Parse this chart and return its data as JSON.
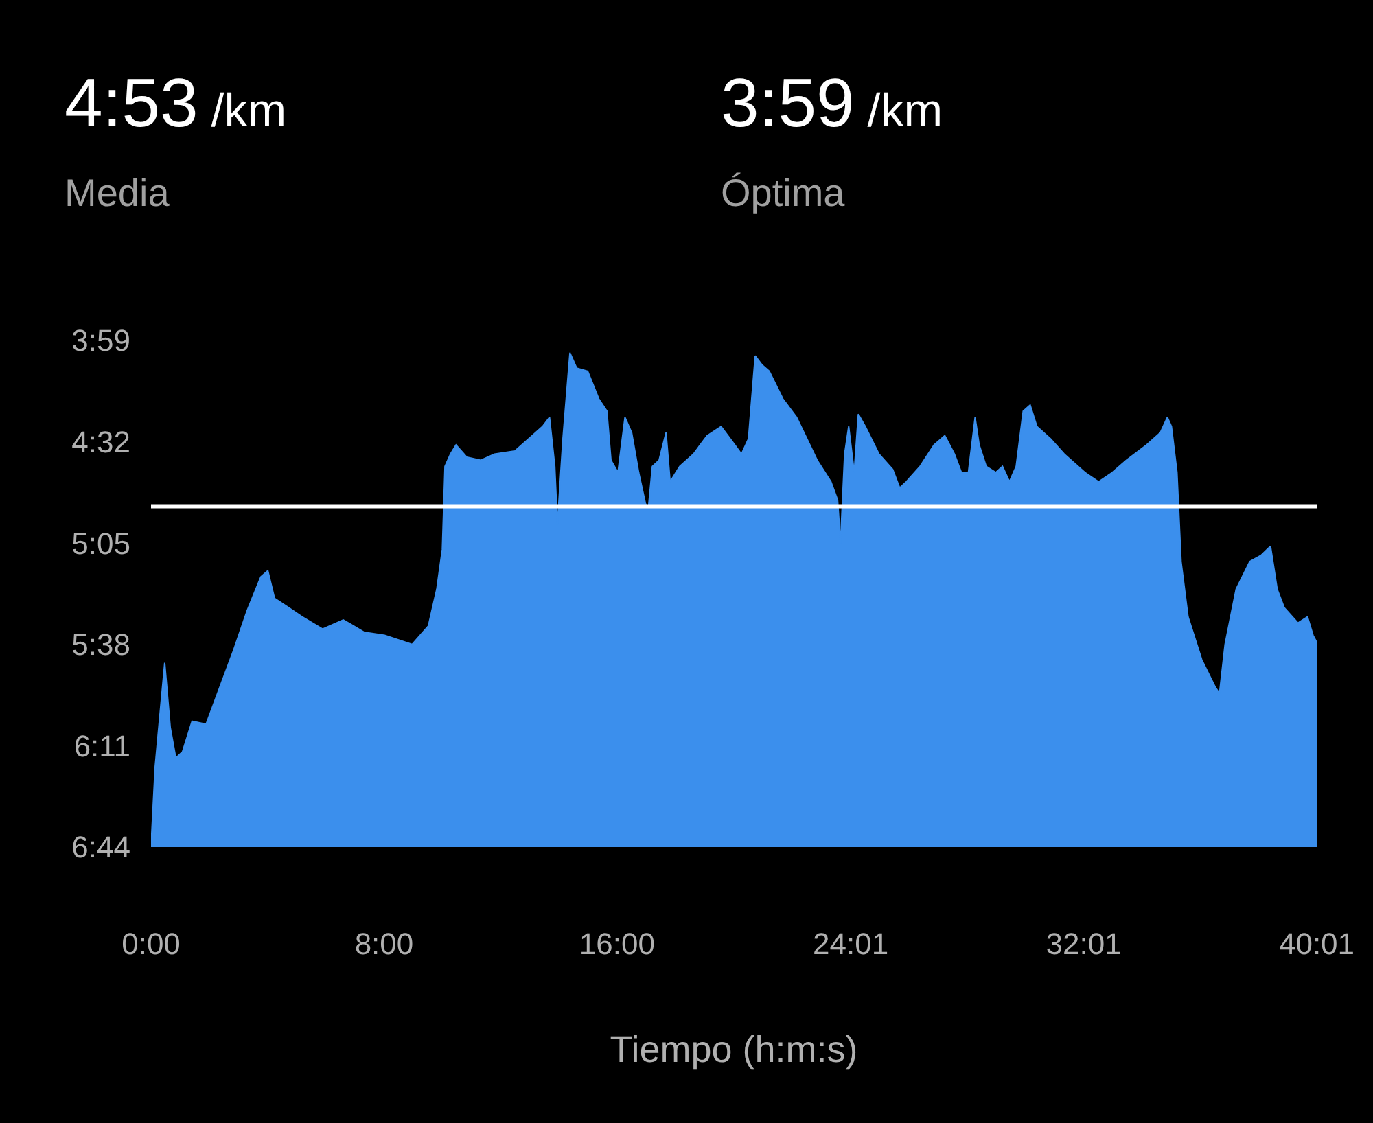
{
  "chart_data": {
    "type": "area",
    "annotations": [
      "4:53 /km",
      "Media",
      "3:59 /km",
      "Óptima"
    ],
    "xlabel": "Tiempo (h:m:s)",
    "x": [
      0,
      0.14,
      0.47,
      0.66,
      0.85,
      1.08,
      1.41,
      1.89,
      2.36,
      2.83,
      3.3,
      3.77,
      4.01,
      4.24,
      4.72,
      5.19,
      5.89,
      6.6,
      7.31,
      8.02,
      8.96,
      9.52,
      9.81,
      10.0,
      10.09,
      10.28,
      10.47,
      10.84,
      11.32,
      11.79,
      12.49,
      12.97,
      13.44,
      13.68,
      13.86,
      13.95,
      14.14,
      14.38,
      14.61,
      14.99,
      15.37,
      15.65,
      15.79,
      16.03,
      16.27,
      16.5,
      16.74,
      16.97,
      17.07,
      17.21,
      17.44,
      17.68,
      17.82,
      18.15,
      18.62,
      19.09,
      19.57,
      20.04,
      20.27,
      20.51,
      20.74,
      20.98,
      21.22,
      21.69,
      22.16,
      22.87,
      23.34,
      23.57,
      23.67,
      23.81,
      23.95,
      24.14,
      24.28,
      24.52,
      24.99,
      25.46,
      25.7,
      25.93,
      26.4,
      26.88,
      27.25,
      27.58,
      27.82,
      28.06,
      28.29,
      28.43,
      28.67,
      29.0,
      29.23,
      29.47,
      29.7,
      29.94,
      30.18,
      30.41,
      30.88,
      31.35,
      32.06,
      32.53,
      33.0,
      33.48,
      34.18,
      34.65,
      34.89,
      35.03,
      35.22,
      35.36,
      35.6,
      36.07,
      36.54,
      36.68,
      36.87,
      37.25,
      37.72,
      38.1,
      38.43,
      38.66,
      38.9,
      39.37,
      39.7,
      39.89,
      40.0,
      40.0
    ],
    "series": [
      {
        "color": "#3b8fed",
        "values": [
          404,
          378,
          344,
          365,
          375,
          373,
          363,
          364,
          352,
          340,
          327,
          316,
          314,
          323,
          326,
          329,
          333,
          330,
          334,
          335,
          338,
          332,
          320,
          307,
          280,
          276,
          273,
          277,
          278,
          276,
          275,
          271,
          267,
          264,
          280,
          299,
          271,
          243,
          248,
          249,
          258,
          262,
          278,
          282,
          264,
          269,
          282,
          292,
          294,
          280,
          278,
          269,
          285,
          280,
          276,
          270,
          267,
          273,
          276,
          271,
          244,
          247,
          249,
          258,
          264,
          278,
          285,
          291,
          305,
          276,
          267,
          282,
          263,
          267,
          276,
          281,
          287,
          285,
          280,
          273,
          270,
          276,
          282,
          282,
          264,
          273,
          280,
          282,
          280,
          285,
          280,
          262,
          260,
          267,
          271,
          276,
          282,
          285,
          282,
          278,
          273,
          269,
          264,
          267,
          282,
          311,
          329,
          343,
          352,
          354,
          338,
          320,
          311,
          309,
          306,
          320,
          326,
          331,
          329,
          335,
          337,
          404
        ]
      }
    ],
    "xlim": [
      0,
      40.0167
    ],
    "xticks": [
      {
        "value": 0,
        "label": "0:00"
      },
      {
        "value": 8,
        "label": "8:00"
      },
      {
        "value": 16,
        "label": "16:00"
      },
      {
        "value": 24.0167,
        "label": "24:01"
      },
      {
        "value": 32.0167,
        "label": "32:01"
      },
      {
        "value": 40.0167,
        "label": "40:01"
      }
    ],
    "ylim": [
      404,
      239
    ],
    "yticks": [
      {
        "value": 239,
        "label": "3:59"
      },
      {
        "value": 272,
        "label": "4:32"
      },
      {
        "value": 305,
        "label": "5:05"
      },
      {
        "value": 338,
        "label": "5:38"
      },
      {
        "value": 371,
        "label": "6:11"
      },
      {
        "value": 404,
        "label": "6:44"
      }
    ],
    "ref_lines": [
      {
        "axis": "y",
        "value": 293,
        "color": "#ffffff"
      }
    ]
  }
}
